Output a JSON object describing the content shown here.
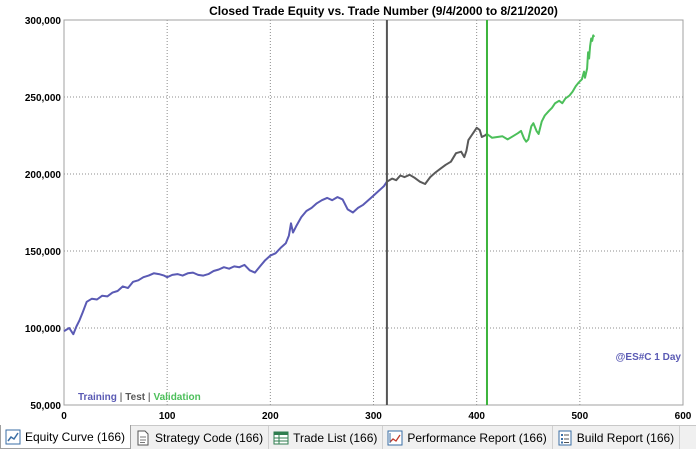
{
  "tabs": [
    {
      "label": "Equity Curve (166)",
      "icon": "equity-curve-icon",
      "active": true
    },
    {
      "label": "Strategy Code (166)",
      "icon": "document-icon",
      "active": false
    },
    {
      "label": "Trade List (166)",
      "icon": "table-icon",
      "active": false
    },
    {
      "label": "Performance Report (166)",
      "icon": "chart-report-icon",
      "active": false
    },
    {
      "label": "Build Report (166)",
      "icon": "list-report-icon",
      "active": false
    }
  ],
  "chart_data": {
    "type": "line",
    "title": "Closed Trade Equity vs. Trade Number (9/4/2000 to 8/21/2020)",
    "xlabel": "",
    "ylabel": "",
    "xlim": [
      0,
      600
    ],
    "ylim": [
      50000,
      300000
    ],
    "x_ticks": [
      0,
      100,
      200,
      300,
      400,
      500,
      600
    ],
    "y_ticks": [
      50000,
      100000,
      150000,
      200000,
      250000,
      300000
    ],
    "x_tick_labels": [
      "0",
      "100",
      "200",
      "300",
      "400",
      "500",
      "600"
    ],
    "y_tick_labels": [
      "50,000",
      "100,000",
      "150,000",
      "200,000",
      "250,000",
      "300,000"
    ],
    "grid": true,
    "symbol_label": "@ES#C 1 Day",
    "legend": {
      "placement": "bottom-left",
      "items": [
        "Training",
        "Test",
        "Validation"
      ],
      "separator": "|"
    },
    "vertical_markers": [
      {
        "x": 313,
        "color": "#555555"
      },
      {
        "x": 410,
        "color": "#3cb43c"
      }
    ],
    "series": [
      {
        "name": "Training",
        "color": "#5a5ab4",
        "points": [
          [
            0,
            98000
          ],
          [
            5,
            100000
          ],
          [
            9,
            96000
          ],
          [
            12,
            101000
          ],
          [
            15,
            105000
          ],
          [
            18,
            110000
          ],
          [
            22,
            117000
          ],
          [
            27,
            119000
          ],
          [
            32,
            118500
          ],
          [
            37,
            121000
          ],
          [
            42,
            120500
          ],
          [
            47,
            123000
          ],
          [
            52,
            124000
          ],
          [
            57,
            127000
          ],
          [
            62,
            126000
          ],
          [
            67,
            130000
          ],
          [
            72,
            131000
          ],
          [
            77,
            133000
          ],
          [
            82,
            134000
          ],
          [
            87,
            135500
          ],
          [
            92,
            135000
          ],
          [
            97,
            134000
          ],
          [
            100,
            133000
          ],
          [
            105,
            134500
          ],
          [
            110,
            135000
          ],
          [
            115,
            134000
          ],
          [
            120,
            135500
          ],
          [
            125,
            136000
          ],
          [
            130,
            134500
          ],
          [
            135,
            134000
          ],
          [
            140,
            135000
          ],
          [
            145,
            137000
          ],
          [
            150,
            138000
          ],
          [
            155,
            139500
          ],
          [
            160,
            138500
          ],
          [
            165,
            140000
          ],
          [
            170,
            139500
          ],
          [
            175,
            141000
          ],
          [
            180,
            137500
          ],
          [
            185,
            136000
          ],
          [
            190,
            140000
          ],
          [
            195,
            144000
          ],
          [
            200,
            147000
          ],
          [
            205,
            148500
          ],
          [
            210,
            152000
          ],
          [
            215,
            155000
          ],
          [
            218,
            160000
          ],
          [
            220,
            168000
          ],
          [
            222,
            162000
          ],
          [
            225,
            166000
          ],
          [
            230,
            172000
          ],
          [
            235,
            176000
          ],
          [
            240,
            178000
          ],
          [
            245,
            181000
          ],
          [
            250,
            183000
          ],
          [
            255,
            184500
          ],
          [
            260,
            183000
          ],
          [
            265,
            185000
          ],
          [
            270,
            183500
          ],
          [
            275,
            177000
          ],
          [
            280,
            175000
          ],
          [
            285,
            178000
          ],
          [
            290,
            180000
          ],
          [
            295,
            183000
          ],
          [
            300,
            186000
          ],
          [
            305,
            189000
          ],
          [
            310,
            192000
          ],
          [
            313,
            195000
          ]
        ]
      },
      {
        "name": "Test",
        "color": "#595959",
        "points": [
          [
            313,
            195000
          ],
          [
            318,
            197000
          ],
          [
            322,
            196000
          ],
          [
            326,
            199000
          ],
          [
            330,
            198000
          ],
          [
            335,
            199500
          ],
          [
            340,
            197500
          ],
          [
            345,
            195000
          ],
          [
            350,
            193500
          ],
          [
            355,
            198000
          ],
          [
            360,
            201000
          ],
          [
            365,
            203500
          ],
          [
            370,
            206000
          ],
          [
            375,
            208000
          ],
          [
            380,
            213500
          ],
          [
            385,
            214500
          ],
          [
            388,
            211000
          ],
          [
            390,
            215000
          ],
          [
            392,
            222000
          ],
          [
            395,
            225000
          ],
          [
            398,
            228000
          ],
          [
            400,
            230000
          ],
          [
            403,
            228500
          ],
          [
            405,
            224000
          ],
          [
            408,
            225000
          ],
          [
            410,
            226000
          ]
        ]
      },
      {
        "name": "Validation",
        "color": "#4cbf5a",
        "points": [
          [
            410,
            226000
          ],
          [
            415,
            223500
          ],
          [
            420,
            224000
          ],
          [
            425,
            224500
          ],
          [
            430,
            222500
          ],
          [
            435,
            224500
          ],
          [
            440,
            226500
          ],
          [
            443,
            228000
          ],
          [
            446,
            223000
          ],
          [
            448,
            221000
          ],
          [
            450,
            222500
          ],
          [
            453,
            231000
          ],
          [
            455,
            233000
          ],
          [
            458,
            228000
          ],
          [
            460,
            226000
          ],
          [
            463,
            234000
          ],
          [
            466,
            238000
          ],
          [
            470,
            241000
          ],
          [
            473,
            243000
          ],
          [
            476,
            246000
          ],
          [
            480,
            247500
          ],
          [
            483,
            246000
          ],
          [
            486,
            249000
          ],
          [
            490,
            251000
          ],
          [
            493,
            253500
          ],
          [
            496,
            257000
          ],
          [
            499,
            259500
          ],
          [
            502,
            261500
          ],
          [
            504,
            266500
          ],
          [
            505,
            262500
          ],
          [
            507,
            268500
          ],
          [
            508,
            279000
          ],
          [
            509,
            275000
          ],
          [
            510,
            283000
          ],
          [
            511,
            288000
          ],
          [
            512,
            286500
          ],
          [
            513,
            290000
          ],
          [
            514,
            289000
          ]
        ]
      }
    ]
  }
}
